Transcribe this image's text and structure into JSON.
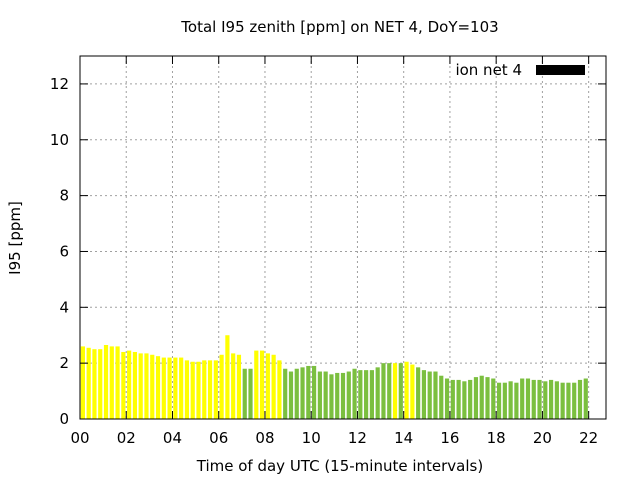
{
  "chart_data": {
    "type": "bar",
    "title": "Total I95 zenith [ppm] on NET 4, DoY=103",
    "xlabel": "Time of day UTC (15-minute intervals)",
    "ylabel": "I95 [ppm]",
    "xlim": [
      0,
      22.75
    ],
    "ylim": [
      0,
      13
    ],
    "x_ticks": [
      "00",
      "02",
      "04",
      "06",
      "08",
      "10",
      "12",
      "14",
      "16",
      "18",
      "20",
      "22"
    ],
    "y_ticks": [
      "0",
      "2",
      "4",
      "6",
      "8",
      "10",
      "12"
    ],
    "grid": true,
    "legend": {
      "label": "ion net 4",
      "color": "#000000",
      "position": "top-right"
    },
    "colors": {
      "yellow": "#ffff00",
      "green": "#7bbf3f"
    },
    "bar_step_hours": 0.25,
    "x_start_hours": 0,
    "values": [
      2.6,
      2.55,
      2.5,
      2.5,
      2.65,
      2.6,
      2.6,
      2.4,
      2.45,
      2.4,
      2.35,
      2.35,
      2.3,
      2.25,
      2.2,
      2.2,
      2.2,
      2.2,
      2.1,
      2.05,
      2.05,
      2.1,
      2.1,
      2.1,
      2.3,
      3.0,
      2.35,
      2.3,
      1.8,
      1.8,
      2.45,
      2.45,
      2.35,
      2.3,
      2.1,
      1.8,
      1.7,
      1.8,
      1.85,
      1.9,
      1.9,
      1.7,
      1.7,
      1.6,
      1.65,
      1.65,
      1.7,
      1.8,
      1.75,
      1.75,
      1.75,
      1.85,
      2.0,
      2.0,
      2.0,
      2.0,
      2.05,
      1.95,
      1.85,
      1.75,
      1.7,
      1.7,
      1.55,
      1.45,
      1.4,
      1.4,
      1.35,
      1.4,
      1.5,
      1.55,
      1.5,
      1.45,
      1.3,
      1.3,
      1.35,
      1.3,
      1.45,
      1.45,
      1.4,
      1.4,
      1.35,
      1.4,
      1.35,
      1.3,
      1.3,
      1.3,
      1.4,
      1.45
    ],
    "bar_colors": [
      "yellow",
      "yellow",
      "yellow",
      "yellow",
      "yellow",
      "yellow",
      "yellow",
      "yellow",
      "yellow",
      "yellow",
      "yellow",
      "yellow",
      "yellow",
      "yellow",
      "yellow",
      "yellow",
      "yellow",
      "yellow",
      "yellow",
      "yellow",
      "yellow",
      "yellow",
      "yellow",
      "yellow",
      "yellow",
      "yellow",
      "yellow",
      "yellow",
      "green",
      "green",
      "yellow",
      "yellow",
      "yellow",
      "yellow",
      "yellow",
      "green",
      "green",
      "green",
      "green",
      "green",
      "green",
      "green",
      "green",
      "green",
      "green",
      "green",
      "green",
      "green",
      "green",
      "green",
      "green",
      "green",
      "green",
      "green",
      "yellow",
      "green",
      "yellow",
      "yellow",
      "green",
      "green",
      "green",
      "green",
      "green",
      "green",
      "green",
      "green",
      "green",
      "green",
      "green",
      "green",
      "green",
      "green",
      "green",
      "green",
      "green",
      "green",
      "green",
      "green",
      "green",
      "green",
      "green",
      "green",
      "green",
      "green",
      "green",
      "green",
      "green",
      "green"
    ]
  }
}
